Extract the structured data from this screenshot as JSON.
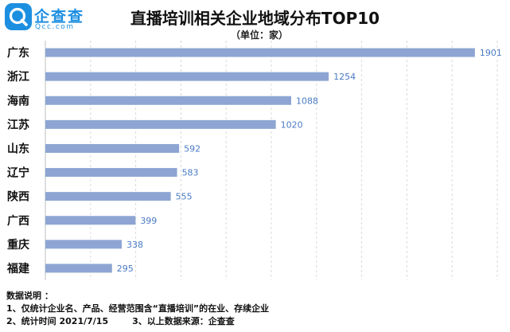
{
  "logo": {
    "name": "企查查",
    "domain": "Qcc.com",
    "icon": "magnifier-q-icon",
    "color": "#1d8fe1"
  },
  "header": {
    "title": "直播培训相关企业地域分布TOP10",
    "subtitle": "（单位：家）"
  },
  "chart_data": {
    "type": "bar",
    "orientation": "horizontal",
    "categories": [
      "广东",
      "浙江",
      "海南",
      "江苏",
      "山东",
      "辽宁",
      "陕西",
      "广西",
      "重庆",
      "福建"
    ],
    "values": [
      1901,
      1254,
      1088,
      1020,
      592,
      583,
      555,
      399,
      338,
      295
    ],
    "title": "直播培训相关企业地域分布TOP10",
    "unit": "（单位：家）",
    "xlim": [
      0,
      2000
    ],
    "grid": "vertical dashed",
    "data_labels": true,
    "bar_color": "#8ea5d3",
    "label_color": "#4a7bc4"
  },
  "notes": {
    "heading": "数据说明 ：",
    "line1": "1、仅统计企业名、产品、经营范围含“直播培训”的在业、存续企业",
    "line2a": "2、统计时间  2021/7/15",
    "line2b": "3、以上数据来源：企查查"
  }
}
